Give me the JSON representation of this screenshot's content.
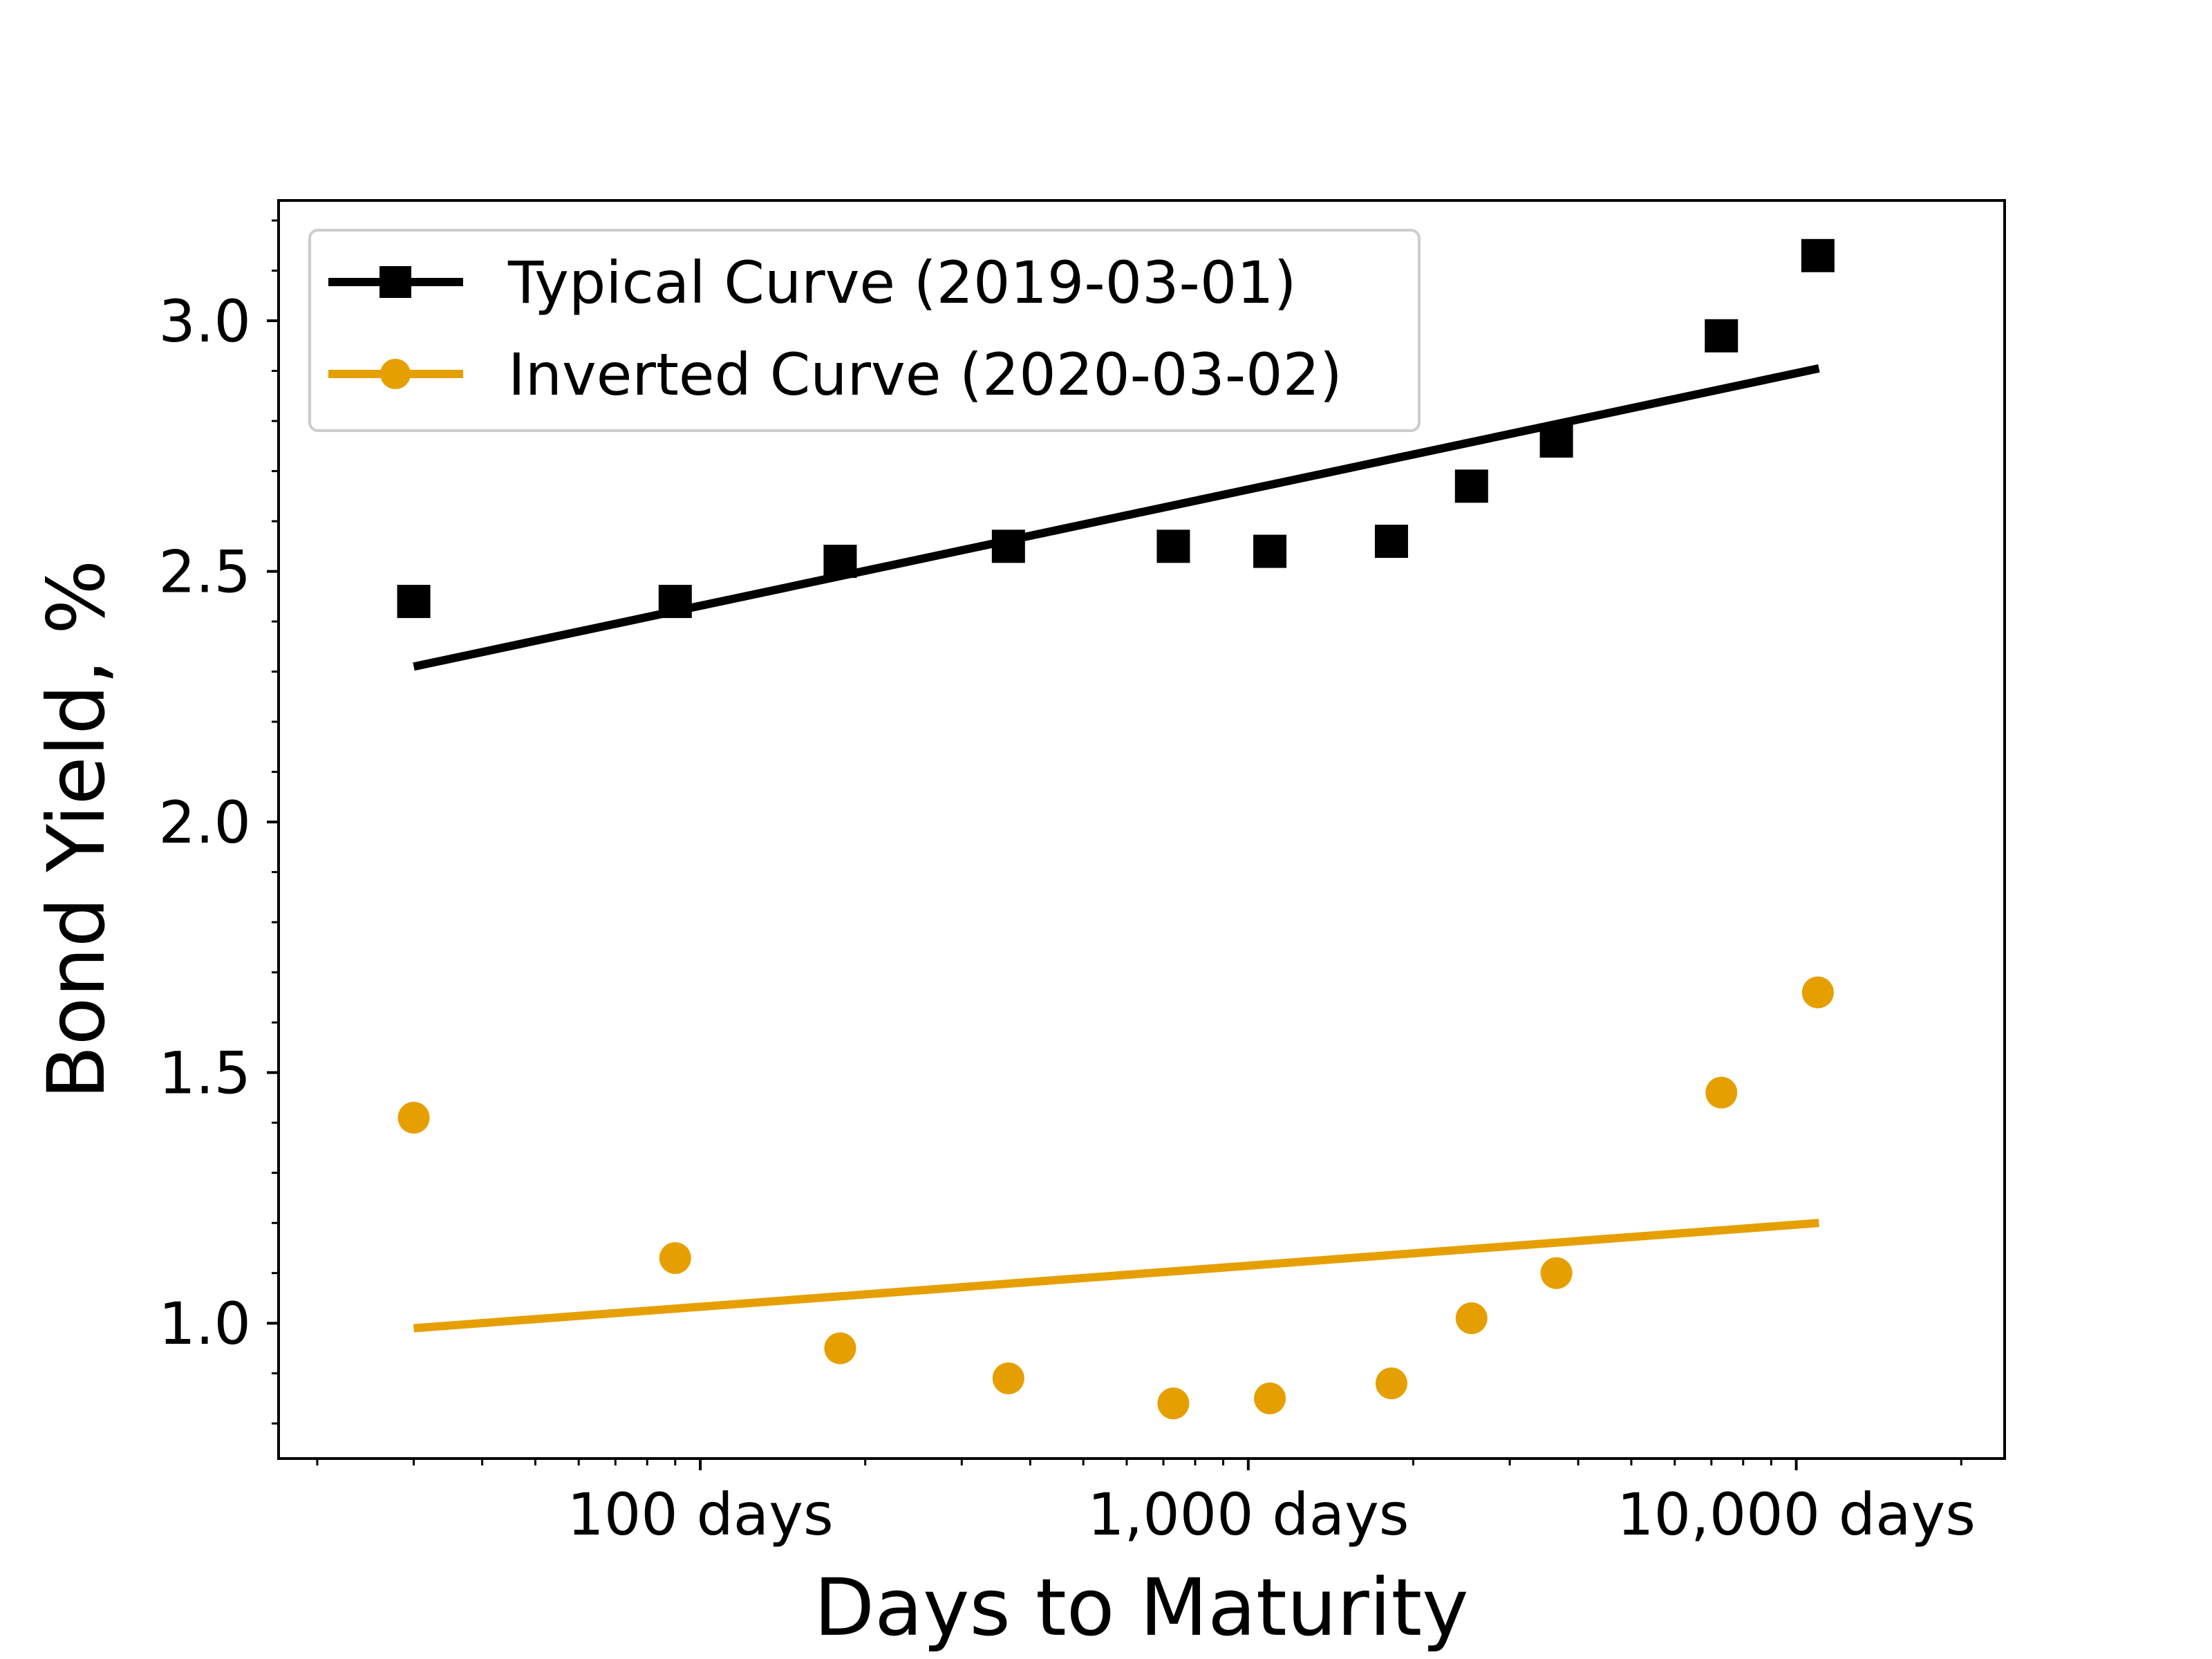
{
  "chart_data": {
    "type": "scatter",
    "title": "",
    "xlabel": "Days to Maturity",
    "ylabel": "Bond Yield, %",
    "xscale": "log",
    "xlim": [
      17,
      24000
    ],
    "ylim": [
      0.73,
      3.24
    ],
    "x_ticks": [
      {
        "value": 100,
        "label": "100 days"
      },
      {
        "value": 1000,
        "label": "1,000 days"
      },
      {
        "value": 10000,
        "label": "10,000 days"
      }
    ],
    "y_ticks": [
      {
        "value": 1.0,
        "label": "1.0"
      },
      {
        "value": 1.5,
        "label": "1.5"
      },
      {
        "value": 2.0,
        "label": "2.0"
      },
      {
        "value": 2.5,
        "label": "2.5"
      },
      {
        "value": 3.0,
        "label": "3.0"
      }
    ],
    "grid": false,
    "legend_position": "top-left",
    "x": [
      30,
      90,
      180,
      365,
      730,
      1095,
      1825,
      2555,
      3650,
      7300,
      10950
    ],
    "series": [
      {
        "name": "Typical Curve (2019-03-01)",
        "color": "#000000",
        "marker": "square",
        "values": [
          2.44,
          2.44,
          2.52,
          2.55,
          2.55,
          2.54,
          2.56,
          2.67,
          2.76,
          2.97,
          3.13
        ],
        "trend": {
          "x": [
            30,
            11000
          ],
          "y": [
            2.31,
            2.905
          ]
        }
      },
      {
        "name": "Inverted Curve (2020-03-02)",
        "color": "#E69F00",
        "marker": "circle",
        "values": [
          1.41,
          1.13,
          0.95,
          0.89,
          0.84,
          0.85,
          0.88,
          1.01,
          1.1,
          1.46,
          1.66
        ],
        "trend": {
          "x": [
            30,
            11000
          ],
          "y": [
            0.99,
            1.2
          ]
        }
      }
    ]
  }
}
